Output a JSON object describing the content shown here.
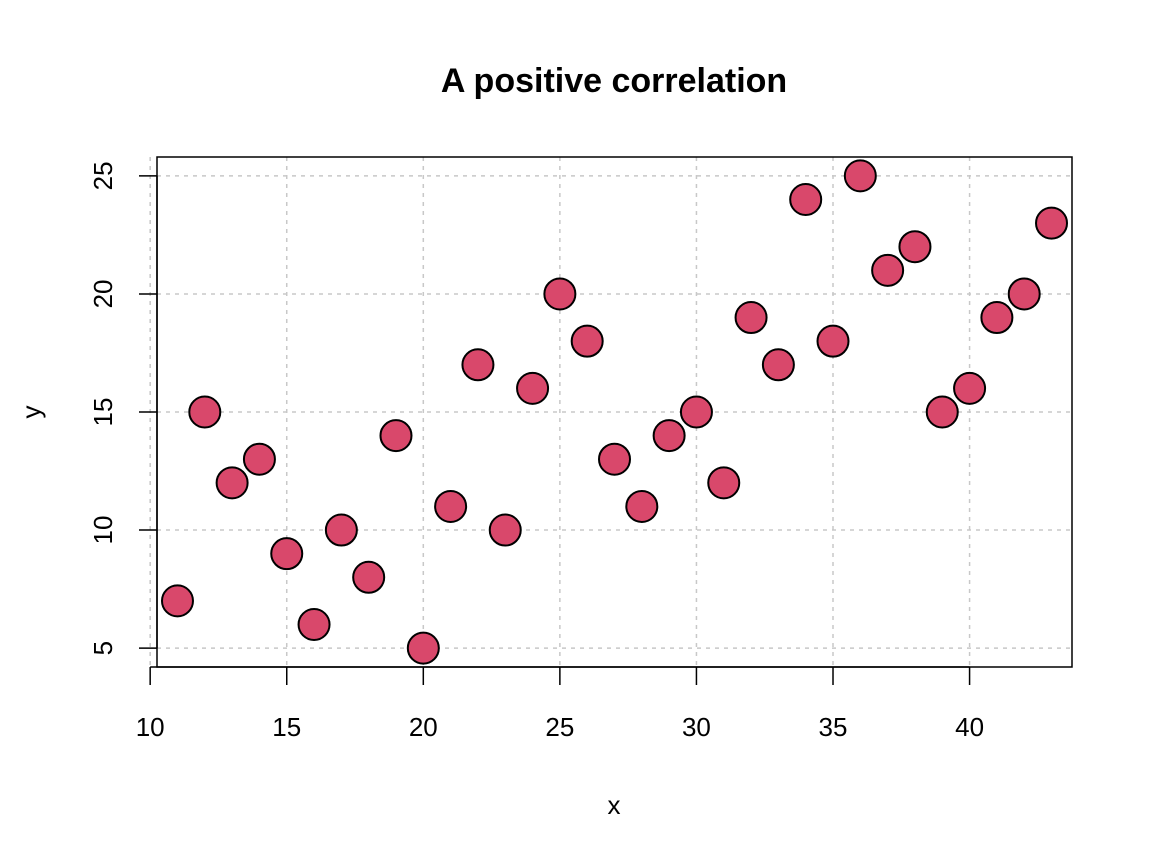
{
  "chart_data": {
    "type": "scatter",
    "title": "A positive correlation",
    "xlabel": "x",
    "ylabel": "y",
    "xlim": [
      10.25,
      43.75
    ],
    "ylim": [
      4.2,
      25.8
    ],
    "xticks": [
      10,
      15,
      20,
      25,
      30,
      35,
      40
    ],
    "yticks": [
      5,
      10,
      15,
      20,
      25
    ],
    "grid": true,
    "point_color": "#d9486b",
    "x": [
      11,
      12,
      13,
      14,
      15,
      16,
      17,
      18,
      19,
      20,
      21,
      22,
      23,
      24,
      25,
      26,
      27,
      28,
      29,
      30,
      31,
      32,
      33,
      34,
      35,
      36,
      37,
      38,
      39,
      40,
      41,
      42,
      43
    ],
    "y": [
      7,
      15,
      12,
      13,
      9,
      6,
      10,
      8,
      14,
      5,
      11,
      17,
      10,
      16,
      20,
      18,
      13,
      11,
      14,
      15,
      12,
      19,
      17,
      24,
      18,
      25,
      21,
      22,
      15,
      16,
      19,
      20,
      23
    ]
  }
}
